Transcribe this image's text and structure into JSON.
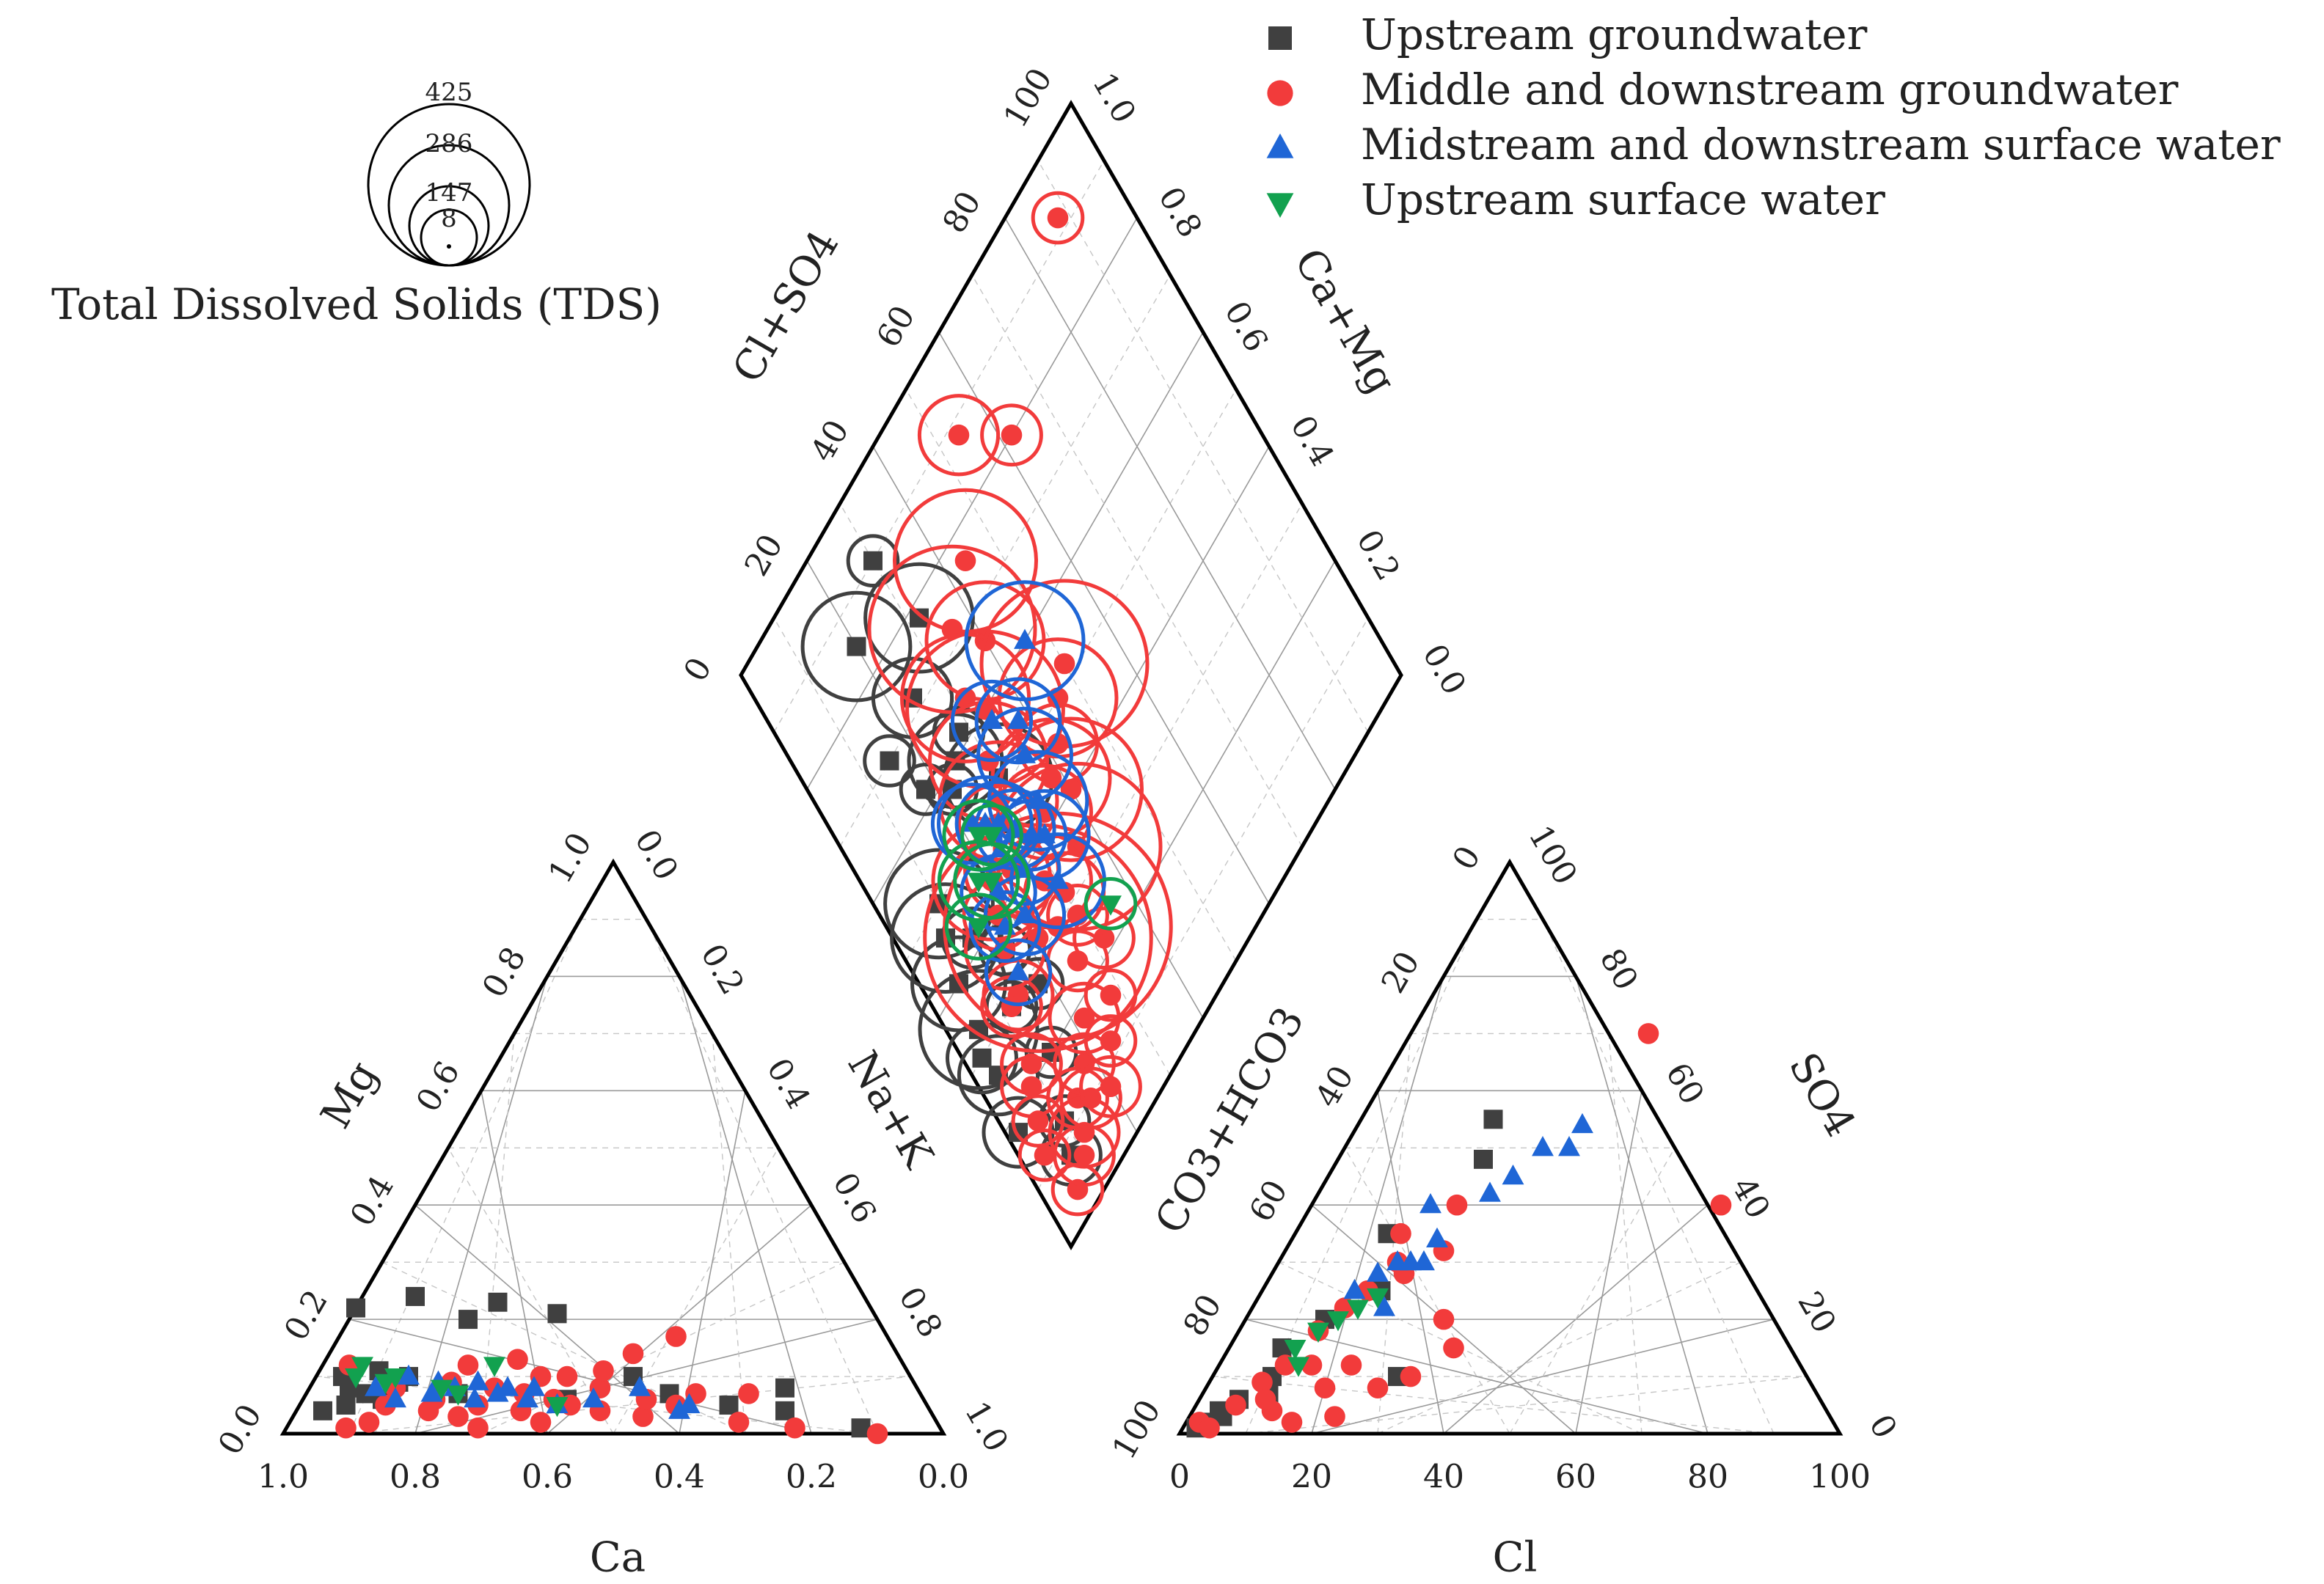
{
  "chart_data": {
    "type": "scatter",
    "subtype": "piper-diagram",
    "colors": {
      "upstream_groundwater": "#404040",
      "mid_down_groundwater": "#f23b3b",
      "mid_down_surface": "#1f66d6",
      "upstream_surface": "#12a14f"
    },
    "legend": [
      {
        "key": "upstream_groundwater",
        "label": "Upstream groundwater",
        "marker": "square"
      },
      {
        "key": "mid_down_groundwater",
        "label": "Middle and downstream groundwater",
        "marker": "circle"
      },
      {
        "key": "mid_down_surface",
        "label": "Midstream and downstream surface water",
        "marker": "triangle-up"
      },
      {
        "key": "upstream_surface",
        "label": "Upstream surface water",
        "marker": "triangle-down"
      }
    ],
    "tds_scale": {
      "title": "Total Dissolved Solids (TDS)",
      "values": [
        "425",
        "286",
        "147",
        "8"
      ]
    },
    "cation_triangle": {
      "axes": {
        "ca": "Ca",
        "mg": "Mg",
        "nak": "Na+K"
      },
      "bottom_ticks": [
        "1.0",
        "0.8",
        "0.6",
        "0.4",
        "0.2",
        "0.0"
      ],
      "left_ticks": [
        "0.0",
        "0.2",
        "0.4",
        "0.6",
        "0.8",
        "1.0"
      ],
      "right_ticks": [
        "0.0",
        "0.2",
        "0.4",
        "0.6",
        "0.8",
        "1.0"
      ]
    },
    "anion_triangle": {
      "axes": {
        "cl": "Cl",
        "carb": "CO3+HCO3",
        "so4": "SO4"
      },
      "bottom_ticks": [
        "0",
        "20",
        "40",
        "60",
        "80",
        "100"
      ],
      "left_ticks": [
        "100",
        "80",
        "60",
        "40",
        "20",
        "0"
      ],
      "right_ticks": [
        "0",
        "20",
        "40",
        "60",
        "80",
        "100"
      ]
    },
    "diamond": {
      "axes": {
        "left": "Cl+SO4",
        "right": "Ca+Mg"
      },
      "left_ticks": [
        "0",
        "20",
        "40",
        "60",
        "80",
        "100"
      ],
      "right_ticks": [
        "0.0",
        "0.2",
        "0.4",
        "0.6",
        "0.8",
        "1.0"
      ]
    },
    "series": [
      {
        "key": "upstream_groundwater",
        "name": "Upstream groundwater",
        "cation": [
          [
            0.92,
            0.04
          ],
          [
            0.88,
            0.05
          ],
          [
            0.86,
            0.08
          ],
          [
            0.84,
            0.07
          ],
          [
            0.8,
            0.11
          ],
          [
            0.78,
            0.09
          ],
          [
            0.76,
            0.1
          ],
          [
            0.82,
            0.06
          ],
          [
            0.78,
            0.22
          ],
          [
            0.68,
            0.24
          ],
          [
            0.62,
            0.2
          ],
          [
            0.56,
            0.23
          ],
          [
            0.48,
            0.21
          ],
          [
            0.42,
            0.1
          ],
          [
            0.38,
            0.07
          ],
          [
            0.3,
            0.05
          ],
          [
            0.22,
            0.04
          ],
          [
            0.2,
            0.08
          ],
          [
            0.12,
            0.01
          ],
          [
            0.86,
            0.1
          ],
          [
            0.7,
            0.07
          ],
          [
            0.54,
            0.06
          ]
        ],
        "anion": [
          [
            2,
            1
          ],
          [
            3,
            2
          ],
          [
            4,
            4
          ],
          [
            6,
            6
          ],
          [
            9,
            10
          ],
          [
            12,
            20
          ],
          [
            20,
            55
          ],
          [
            22,
            48
          ],
          [
            28,
            10
          ],
          [
            18,
            25
          ],
          [
            8,
            15
          ],
          [
            14,
            35
          ],
          [
            5,
            3
          ],
          [
            10,
            7
          ]
        ],
        "diamond": [
          [
            22,
            0.58
          ],
          [
            32,
            0.78
          ],
          [
            30,
            0.9
          ],
          [
            28,
            0.62
          ],
          [
            30,
            0.52
          ],
          [
            25,
            0.6
          ],
          [
            15,
            0.7
          ],
          [
            20,
            0.85
          ],
          [
            24,
            0.72
          ],
          [
            12,
            0.42
          ],
          [
            18,
            0.62
          ],
          [
            10,
            0.5
          ],
          [
            8,
            0.46
          ],
          [
            6,
            0.4
          ],
          [
            5,
            0.33
          ],
          [
            3,
            0.3
          ],
          [
            4,
            0.26
          ],
          [
            2,
            0.18
          ],
          [
            8,
            0.08
          ],
          [
            10,
            0.12
          ],
          [
            14,
            0.2
          ],
          [
            12,
            0.3
          ],
          [
            16,
            0.36
          ],
          [
            18,
            0.28
          ]
        ],
        "tds": [
          60,
          180,
          60,
          60,
          180,
          150,
          60,
          180,
          120,
          80,
          60,
          180,
          180,
          150,
          200,
          100,
          120,
          100,
          80,
          60,
          60,
          60,
          60,
          60
        ]
      },
      {
        "key": "mid_down_groundwater",
        "name": "Middle and downstream groundwater",
        "cation": [
          [
            0.9,
            0.01
          ],
          [
            0.86,
            0.02
          ],
          [
            0.84,
            0.12
          ],
          [
            0.82,
            0.05
          ],
          [
            0.79,
            0.08
          ],
          [
            0.76,
            0.04
          ],
          [
            0.74,
            0.06
          ],
          [
            0.72,
            0.03
          ],
          [
            0.7,
            0.09
          ],
          [
            0.68,
            0.05
          ],
          [
            0.66,
            0.12
          ],
          [
            0.64,
            0.08
          ],
          [
            0.62,
            0.04
          ],
          [
            0.6,
            0.07
          ],
          [
            0.58,
            0.13
          ],
          [
            0.56,
            0.06
          ],
          [
            0.54,
            0.05
          ],
          [
            0.52,
            0.1
          ],
          [
            0.5,
            0.04
          ],
          [
            0.48,
            0.08
          ],
          [
            0.46,
            0.11
          ],
          [
            0.44,
            0.03
          ],
          [
            0.42,
            0.06
          ],
          [
            0.4,
            0.14
          ],
          [
            0.38,
            0.05
          ],
          [
            0.34,
            0.07
          ],
          [
            0.32,
            0.17
          ],
          [
            0.3,
            0.02
          ],
          [
            0.26,
            0.07
          ],
          [
            0.22,
            0.01
          ],
          [
            0.1,
            0.0
          ],
          [
            0.56,
            0.1
          ],
          [
            0.6,
            0.02
          ],
          [
            0.7,
            0.01
          ]
        ],
        "anion": [
          [
            2,
            2
          ],
          [
            4,
            1
          ],
          [
            6,
            5
          ],
          [
            8,
            9
          ],
          [
            10,
            12
          ],
          [
            12,
            18
          ],
          [
            14,
            22
          ],
          [
            16,
            25
          ],
          [
            18,
            30
          ],
          [
            20,
            28
          ],
          [
            22,
            40
          ],
          [
            24,
            32
          ],
          [
            26,
            8
          ],
          [
            18,
            8
          ],
          [
            12,
            4
          ],
          [
            14,
            12
          ],
          [
            20,
            12
          ],
          [
            30,
            10
          ],
          [
            30,
            20
          ],
          [
            34,
            15
          ],
          [
            36,
            70
          ],
          [
            62,
            40
          ],
          [
            16,
            35
          ],
          [
            10,
            6
          ],
          [
            22,
            3
          ],
          [
            16,
            2
          ]
        ],
        "diamond": [
          [
            88,
            0.92
          ],
          [
            62,
            0.8
          ],
          [
            54,
            0.88
          ],
          [
            44,
            0.76
          ],
          [
            40,
            0.66
          ],
          [
            36,
            0.72
          ],
          [
            34,
            0.6
          ],
          [
            32,
            0.64
          ],
          [
            30,
            0.55
          ],
          [
            28,
            0.5
          ],
          [
            26,
            0.48
          ],
          [
            24,
            0.42
          ],
          [
            20,
            0.44
          ],
          [
            18,
            0.4
          ],
          [
            16,
            0.36
          ],
          [
            14,
            0.3
          ],
          [
            12,
            0.3
          ],
          [
            10,
            0.22
          ],
          [
            8,
            0.2
          ],
          [
            6,
            0.16
          ],
          [
            4,
            0.12
          ],
          [
            22,
            0.32
          ],
          [
            26,
            0.3
          ],
          [
            30,
            0.32
          ],
          [
            34,
            0.42
          ],
          [
            38,
            0.44
          ],
          [
            42,
            0.46
          ],
          [
            46,
            0.5
          ],
          [
            50,
            0.52
          ],
          [
            36,
            0.34
          ],
          [
            40,
            0.4
          ],
          [
            28,
            0.36
          ],
          [
            14,
            0.12
          ],
          [
            18,
            0.14
          ],
          [
            22,
            0.18
          ],
          [
            6,
            0.04
          ],
          [
            10,
            0.06
          ],
          [
            12,
            0.08
          ],
          [
            16,
            0.1
          ],
          [
            20,
            0.08
          ],
          [
            24,
            0.12
          ],
          [
            28,
            0.16
          ],
          [
            32,
            0.22
          ],
          [
            26,
            0.24
          ],
          [
            30,
            0.28
          ]
        ],
        "tds": [
          60,
          80,
          120,
          250,
          200,
          300,
          280,
          220,
          200,
          200,
          120,
          150,
          200,
          100,
          120,
          100,
          80,
          80,
          80,
          60,
          60,
          425,
          425,
          120,
          150,
          200,
          120,
          200,
          300,
          300,
          250,
          150,
          80,
          80,
          100,
          60,
          80,
          100,
          80,
          80,
          60,
          60,
          80,
          80,
          80
        ]
      },
      {
        "key": "mid_down_surface",
        "name": "Midstream and downstream surface water",
        "cation": [
          [
            0.82,
            0.08
          ],
          [
            0.8,
            0.06
          ],
          [
            0.76,
            0.1
          ],
          [
            0.74,
            0.07
          ],
          [
            0.72,
            0.09
          ],
          [
            0.7,
            0.08
          ],
          [
            0.68,
            0.06
          ],
          [
            0.66,
            0.09
          ],
          [
            0.64,
            0.07
          ],
          [
            0.62,
            0.08
          ],
          [
            0.6,
            0.06
          ],
          [
            0.58,
            0.08
          ],
          [
            0.56,
            0.05
          ],
          [
            0.5,
            0.06
          ],
          [
            0.42,
            0.08
          ],
          [
            0.38,
            0.04
          ],
          [
            0.36,
            0.05
          ]
        ],
        "anion": [
          [
            14,
            25
          ],
          [
            16,
            28
          ],
          [
            18,
            30
          ],
          [
            20,
            30
          ],
          [
            22,
            34
          ],
          [
            18,
            40
          ],
          [
            26,
            42
          ],
          [
            28,
            45
          ],
          [
            30,
            50
          ],
          [
            34,
            50
          ],
          [
            34,
            54
          ],
          [
            22,
            30
          ],
          [
            20,
            22
          ]
        ],
        "diamond": [
          [
            22,
            0.52
          ],
          [
            24,
            0.5
          ],
          [
            26,
            0.48
          ],
          [
            28,
            0.45
          ],
          [
            30,
            0.42
          ],
          [
            32,
            0.4
          ],
          [
            20,
            0.42
          ],
          [
            18,
            0.38
          ],
          [
            16,
            0.32
          ],
          [
            34,
            0.44
          ],
          [
            36,
            0.5
          ],
          [
            38,
            0.54
          ],
          [
            34,
            0.58
          ],
          [
            46,
            0.6
          ],
          [
            30,
            0.34
          ],
          [
            26,
            0.4
          ],
          [
            22,
            0.36
          ]
        ],
        "tds": [
          120,
          150,
          130,
          120,
          100,
          140,
          110,
          100,
          90,
          160,
          150,
          130,
          120,
          200,
          150,
          100,
          120
        ]
      },
      {
        "key": "upstream_surface",
        "name": "Upstream surface water",
        "cation": [
          [
            0.84,
            0.1
          ],
          [
            0.82,
            0.12
          ],
          [
            0.8,
            0.09
          ],
          [
            0.78,
            0.1
          ],
          [
            0.72,
            0.08
          ],
          [
            0.7,
            0.07
          ],
          [
            0.62,
            0.12
          ],
          [
            0.56,
            0.05
          ]
        ],
        "anion": [
          [
            10,
            15
          ],
          [
            12,
            18
          ],
          [
            14,
            20
          ],
          [
            16,
            22
          ],
          [
            18,
            24
          ],
          [
            12,
            12
          ]
        ],
        "diamond": [
          [
            18,
            0.46
          ],
          [
            20,
            0.44
          ],
          [
            22,
            0.5
          ],
          [
            14,
            0.42
          ],
          [
            24,
            0.48
          ],
          [
            36,
            0.24
          ]
        ],
        "tds": [
          120,
          110,
          100,
          90,
          80,
          60
        ]
      }
    ]
  }
}
